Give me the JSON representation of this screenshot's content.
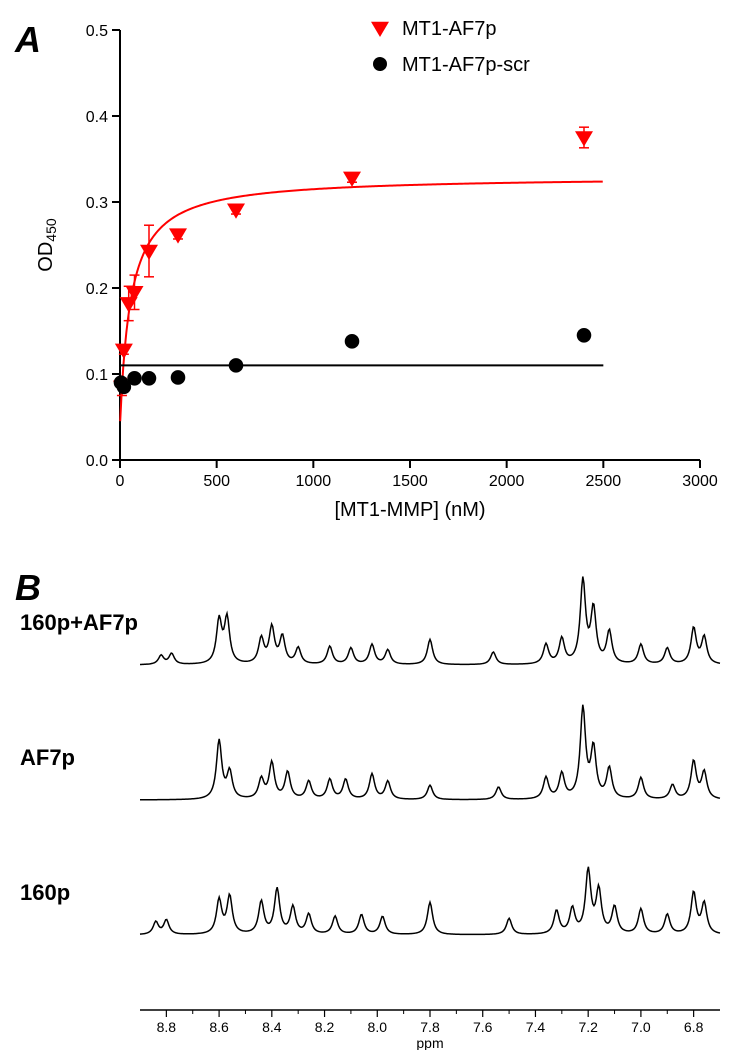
{
  "panelA": {
    "label": "A",
    "label_fontsize": 36,
    "label_fontweight": "bold",
    "background_color": "#ffffff",
    "axis_color": "#000000",
    "axis_fontsize": 20,
    "tick_fontsize": 16,
    "xlabel": "[MT1-MMP] (nM)",
    "ylabel_prefix": "OD",
    "ylabel_sub": "450",
    "xlim": [
      0,
      3000
    ],
    "ylim": [
      0.0,
      0.5
    ],
    "xtick_step": 500,
    "ytick_step": 0.1,
    "legend": {
      "items": [
        {
          "label": "MT1-AF7p",
          "marker": "triangle-down",
          "color": "#ff0000"
        },
        {
          "label": "MT1-AF7p-scr",
          "marker": "circle",
          "color": "#000000"
        }
      ],
      "fontsize": 20
    },
    "series": [
      {
        "name": "MT1-AF7p",
        "marker": "triangle-down",
        "color": "#ff0000",
        "marker_size": 9,
        "line_width": 2,
        "points": [
          {
            "x": 10,
            "y": 0.085,
            "err": 0.01
          },
          {
            "x": 20,
            "y": 0.128,
            "err": 0.005
          },
          {
            "x": 45,
            "y": 0.182,
            "err": 0.02
          },
          {
            "x": 75,
            "y": 0.195,
            "err": 0.02
          },
          {
            "x": 150,
            "y": 0.243,
            "err": 0.03
          },
          {
            "x": 300,
            "y": 0.262,
            "err": 0.005
          },
          {
            "x": 600,
            "y": 0.291,
            "err": 0.005
          },
          {
            "x": 1200,
            "y": 0.328,
            "err": 0.005
          },
          {
            "x": 2400,
            "y": 0.375,
            "err": 0.012
          }
        ],
        "fit": {
          "ymax": 0.33,
          "kd": 55,
          "y0": 0.04
        }
      },
      {
        "name": "MT1-AF7p-scr",
        "marker": "circle",
        "color": "#000000",
        "marker_size": 8,
        "line_width": 2,
        "points": [
          {
            "x": 5,
            "y": 0.09,
            "err": 0
          },
          {
            "x": 20,
            "y": 0.085,
            "err": 0
          },
          {
            "x": 75,
            "y": 0.095,
            "err": 0
          },
          {
            "x": 150,
            "y": 0.095,
            "err": 0
          },
          {
            "x": 300,
            "y": 0.096,
            "err": 0
          },
          {
            "x": 600,
            "y": 0.11,
            "err": 0
          },
          {
            "x": 1200,
            "y": 0.138,
            "err": 0
          },
          {
            "x": 2400,
            "y": 0.145,
            "err": 0
          }
        ],
        "fit_flat_y": 0.11
      }
    ]
  },
  "panelB": {
    "label": "B",
    "label_fontsize": 36,
    "label_fontweight": "bold",
    "background_color": "#ffffff",
    "trace_color": "#000000",
    "trace_width": 1.5,
    "axis_color": "#000000",
    "xlabel": "ppm",
    "xlabel_fontsize": 14,
    "xtick_fontsize": 14,
    "xlim": [
      8.9,
      6.7
    ],
    "xtick_step": 0.2,
    "trace_label_fontsize": 22,
    "trace_label_fontweight": "bold",
    "traces": [
      {
        "label": "160p+AF7p",
        "y_offset": 0,
        "peaks": [
          {
            "ppm": 8.82,
            "h": 10
          },
          {
            "ppm": 8.78,
            "h": 12
          },
          {
            "ppm": 8.6,
            "h": 48
          },
          {
            "ppm": 8.57,
            "h": 50
          },
          {
            "ppm": 8.44,
            "h": 28
          },
          {
            "ppm": 8.4,
            "h": 40
          },
          {
            "ppm": 8.36,
            "h": 30
          },
          {
            "ppm": 8.3,
            "h": 18
          },
          {
            "ppm": 8.18,
            "h": 20
          },
          {
            "ppm": 8.1,
            "h": 18
          },
          {
            "ppm": 8.02,
            "h": 22
          },
          {
            "ppm": 7.96,
            "h": 16
          },
          {
            "ppm": 7.8,
            "h": 28
          },
          {
            "ppm": 7.56,
            "h": 14
          },
          {
            "ppm": 7.36,
            "h": 22
          },
          {
            "ppm": 7.3,
            "h": 28
          },
          {
            "ppm": 7.22,
            "h": 92
          },
          {
            "ppm": 7.18,
            "h": 60
          },
          {
            "ppm": 7.12,
            "h": 36
          },
          {
            "ppm": 7.0,
            "h": 22
          },
          {
            "ppm": 6.9,
            "h": 18
          },
          {
            "ppm": 6.8,
            "h": 40
          },
          {
            "ppm": 6.76,
            "h": 30
          }
        ]
      },
      {
        "label": "AF7p",
        "y_offset": 1,
        "peaks": [
          {
            "ppm": 8.6,
            "h": 65
          },
          {
            "ppm": 8.56,
            "h": 30
          },
          {
            "ppm": 8.44,
            "h": 22
          },
          {
            "ppm": 8.4,
            "h": 40
          },
          {
            "ppm": 8.34,
            "h": 30
          },
          {
            "ppm": 8.26,
            "h": 20
          },
          {
            "ppm": 8.18,
            "h": 22
          },
          {
            "ppm": 8.12,
            "h": 22
          },
          {
            "ppm": 8.02,
            "h": 28
          },
          {
            "ppm": 7.96,
            "h": 20
          },
          {
            "ppm": 7.8,
            "h": 16
          },
          {
            "ppm": 7.54,
            "h": 14
          },
          {
            "ppm": 7.36,
            "h": 24
          },
          {
            "ppm": 7.3,
            "h": 28
          },
          {
            "ppm": 7.22,
            "h": 100
          },
          {
            "ppm": 7.18,
            "h": 55
          },
          {
            "ppm": 7.12,
            "h": 34
          },
          {
            "ppm": 7.0,
            "h": 24
          },
          {
            "ppm": 6.88,
            "h": 16
          },
          {
            "ppm": 6.8,
            "h": 42
          },
          {
            "ppm": 6.76,
            "h": 30
          }
        ]
      },
      {
        "label": "160p",
        "y_offset": 2,
        "peaks": [
          {
            "ppm": 8.84,
            "h": 14
          },
          {
            "ppm": 8.8,
            "h": 16
          },
          {
            "ppm": 8.6,
            "h": 38
          },
          {
            "ppm": 8.56,
            "h": 42
          },
          {
            "ppm": 8.44,
            "h": 36
          },
          {
            "ppm": 8.38,
            "h": 50
          },
          {
            "ppm": 8.32,
            "h": 30
          },
          {
            "ppm": 8.26,
            "h": 22
          },
          {
            "ppm": 8.16,
            "h": 20
          },
          {
            "ppm": 8.06,
            "h": 22
          },
          {
            "ppm": 7.98,
            "h": 20
          },
          {
            "ppm": 7.8,
            "h": 36
          },
          {
            "ppm": 7.5,
            "h": 18
          },
          {
            "ppm": 7.32,
            "h": 26
          },
          {
            "ppm": 7.26,
            "h": 28
          },
          {
            "ppm": 7.2,
            "h": 70
          },
          {
            "ppm": 7.16,
            "h": 48
          },
          {
            "ppm": 7.1,
            "h": 30
          },
          {
            "ppm": 7.0,
            "h": 28
          },
          {
            "ppm": 6.9,
            "h": 22
          },
          {
            "ppm": 6.8,
            "h": 46
          },
          {
            "ppm": 6.76,
            "h": 34
          }
        ]
      }
    ]
  }
}
